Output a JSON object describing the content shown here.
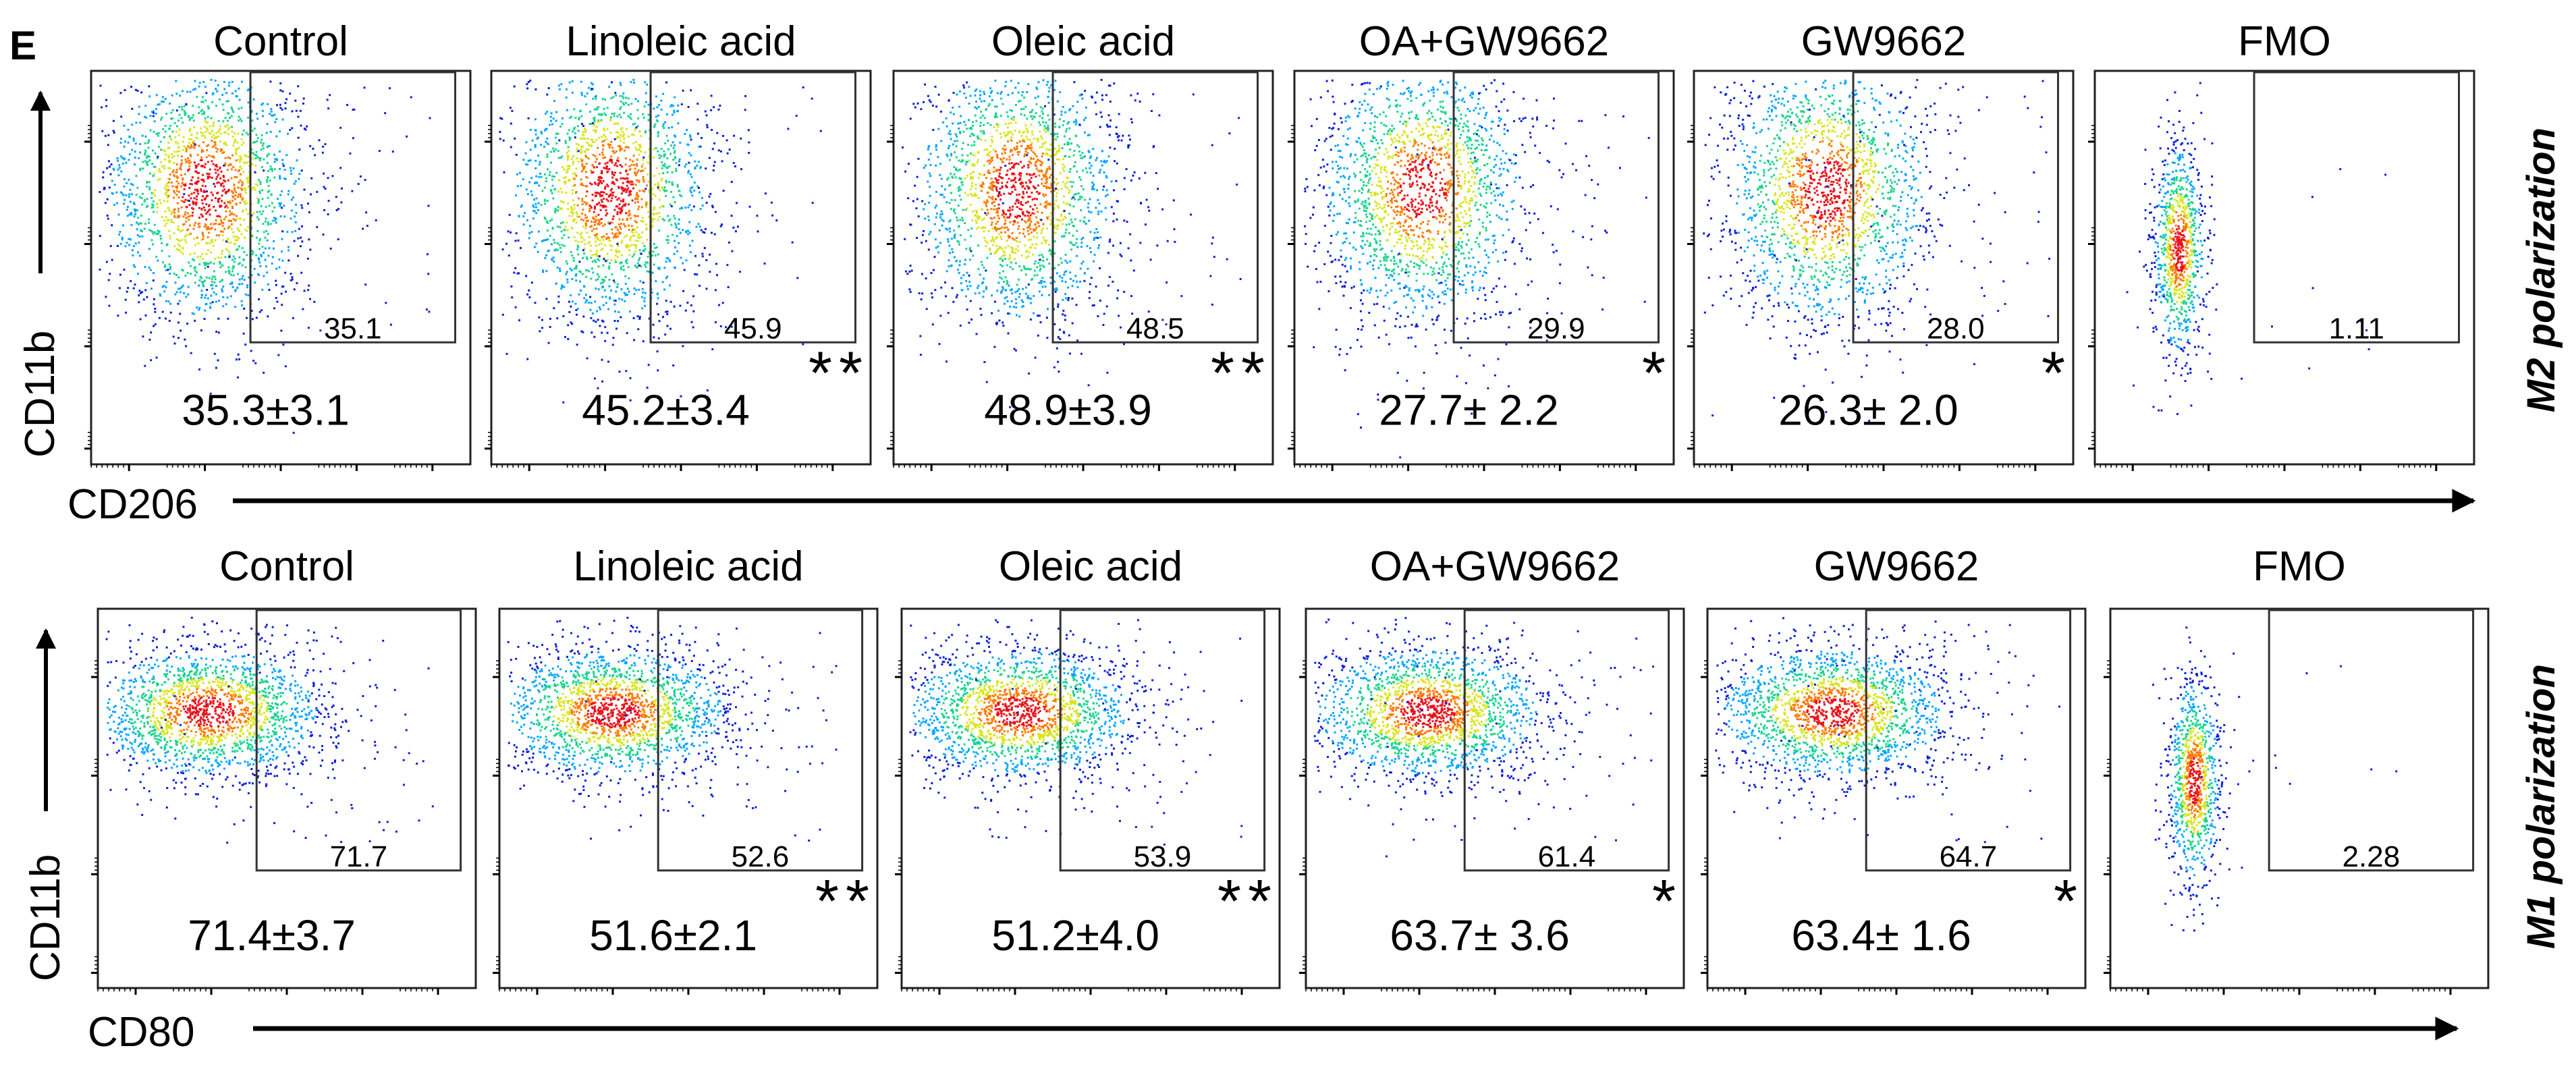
{
  "panel_label": "E",
  "colors": {
    "axis": "#000000",
    "gate": "#333333",
    "density": [
      "#0a1fd6",
      "#00a6ff",
      "#19d48f",
      "#d8e51c",
      "#ff7a00",
      "#e8131b"
    ]
  },
  "chart_data": [
    {
      "type": "scatter",
      "row_label": "M2 polarization",
      "ylabel": "CD11b",
      "xlabel": "CD206",
      "panels": [
        {
          "title": "Control",
          "gate_value": "35.1",
          "stat": "35.3±3.1",
          "significance": ""
        },
        {
          "title": "Linoleic acid",
          "gate_value": "45.9",
          "stat": "45.2±3.4",
          "significance": "**"
        },
        {
          "title": "Oleic acid",
          "gate_value": "48.5",
          "stat": "48.9±3.9",
          "significance": "**"
        },
        {
          "title": "OA+GW9662",
          "gate_value": "29.9",
          "stat": "27.7± 2.2",
          "significance": "*"
        },
        {
          "title": "GW9662",
          "gate_value": "28.0",
          "stat": "26.3± 2.0",
          "significance": "*"
        },
        {
          "title": "FMO",
          "gate_value": "1.11",
          "stat": "",
          "significance": ""
        }
      ]
    },
    {
      "type": "scatter",
      "row_label": "M1 polarization",
      "ylabel": "CD11b",
      "xlabel": "CD80",
      "panels": [
        {
          "title": "Control",
          "gate_value": "71.7",
          "stat": "71.4±3.7",
          "significance": ""
        },
        {
          "title": "Linoleic acid",
          "gate_value": "52.6",
          "stat": "51.6±2.1",
          "significance": "**"
        },
        {
          "title": "Oleic acid",
          "gate_value": "53.9",
          "stat": "51.2±4.0",
          "significance": "**"
        },
        {
          "title": "OA+GW9662",
          "gate_value": "61.4",
          "stat": "63.7± 3.6",
          "significance": "*"
        },
        {
          "title": "GW9662",
          "gate_value": "64.7",
          "stat": "63.4± 1.6",
          "significance": "*"
        },
        {
          "title": "FMO",
          "gate_value": "2.28",
          "stat": "",
          "significance": ""
        }
      ]
    }
  ]
}
